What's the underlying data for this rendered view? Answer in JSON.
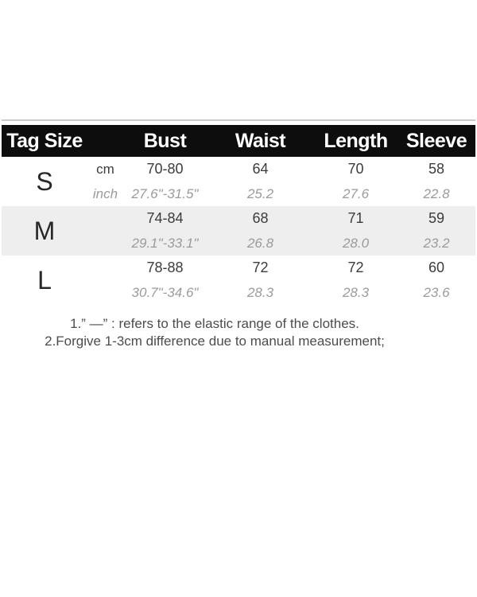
{
  "table": {
    "headers": [
      "Tag Size",
      "Bust",
      "Waist",
      "Length",
      "Sleeve"
    ],
    "rows": [
      {
        "size": "S",
        "cm": {
          "unit": "cm",
          "bust": "70-80",
          "waist": "64",
          "length": "70",
          "sleeve": "58"
        },
        "inch": {
          "unit": "inch",
          "bust": "27.6\"-31.5\"",
          "waist": "25.2",
          "length": "27.6",
          "sleeve": "22.8"
        }
      },
      {
        "size": "M",
        "cm": {
          "unit": "",
          "bust": "74-84",
          "waist": "68",
          "length": "71",
          "sleeve": "59"
        },
        "inch": {
          "unit": "",
          "bust": "29.1\"-33.1\"",
          "waist": "26.8",
          "length": "28.0",
          "sleeve": "23.2"
        }
      },
      {
        "size": "L",
        "cm": {
          "unit": "",
          "bust": "78-88",
          "waist": "72",
          "length": "72",
          "sleeve": "60"
        },
        "inch": {
          "unit": "",
          "bust": "30.7\"-34.6\"",
          "waist": "28.3",
          "length": "28.3",
          "sleeve": "23.6"
        }
      }
    ]
  },
  "notes": [
    "1.” —” : refers to the elastic range of the clothes.",
    "2.Forgive 1-3cm difference due to manual measurement;"
  ],
  "colors": {
    "header_bg": "#0d0d0d",
    "header_text": "#ffffff",
    "alt_row_bg": "#eeeeee",
    "cm_text": "#3c3c3c",
    "inch_text": "#9b9b9b",
    "note_text": "#4c4c4c",
    "top_line": "#cbcbcb"
  }
}
